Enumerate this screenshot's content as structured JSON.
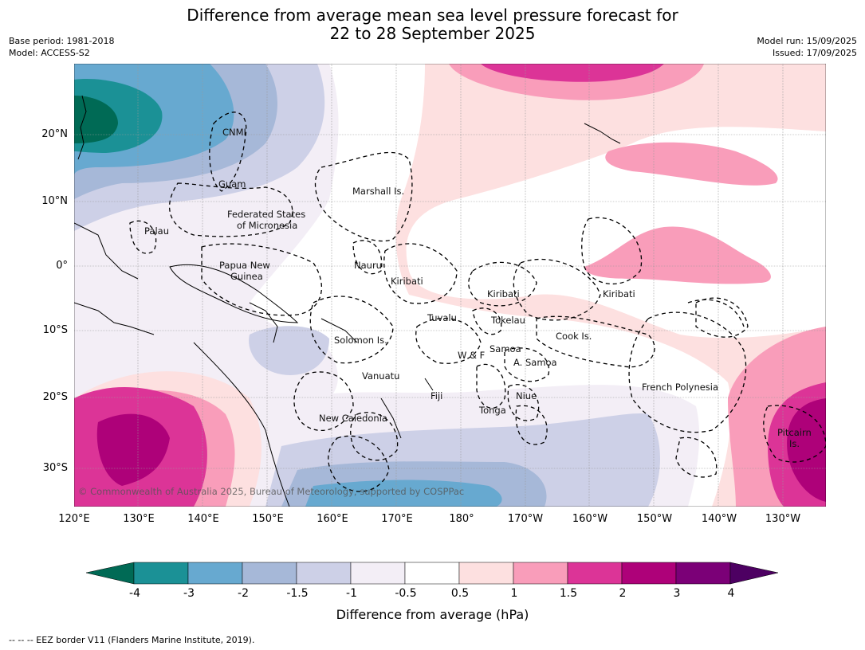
{
  "title": {
    "line1": "Difference from average mean sea level pressure forecast for",
    "line2": "22 to 28 September 2025"
  },
  "meta": {
    "base_period": "Base period: 1981-2018",
    "model": "Model: ACCESS-S2",
    "model_run": "Model run: 15/09/2025",
    "issued": "Issued: 17/09/2025"
  },
  "map": {
    "lon_ticks": [
      "120°E",
      "130°E",
      "140°E",
      "150°E",
      "160°E",
      "170°E",
      "180°",
      "170°W",
      "160°W",
      "150°W",
      "140°W",
      "130°W"
    ],
    "lat_ticks": [
      "20°N",
      "10°N",
      "0°",
      "10°S",
      "20°S",
      "30°S"
    ],
    "copyright": "© Commonwealth of Australia 2025, Bureau of Meteorology, supported by COSPPac",
    "places": [
      {
        "id": "cnmi",
        "label": "CNMI"
      },
      {
        "id": "guam",
        "label": "Guam"
      },
      {
        "id": "marshall",
        "label": "Marshall Is."
      },
      {
        "id": "fsm1",
        "label": "Federated States"
      },
      {
        "id": "fsm2",
        "label": "of Micronesia"
      },
      {
        "id": "palau",
        "label": "Palau"
      },
      {
        "id": "png1",
        "label": "Papua New"
      },
      {
        "id": "png2",
        "label": "Guinea"
      },
      {
        "id": "nauru",
        "label": "Nauru"
      },
      {
        "id": "kiribati1",
        "label": "Kiribati"
      },
      {
        "id": "kiribati2",
        "label": "Kiribati"
      },
      {
        "id": "kiribati3",
        "label": "Kiribati"
      },
      {
        "id": "tuvalu",
        "label": "Tuvalu"
      },
      {
        "id": "tokelau",
        "label": "Tokelau"
      },
      {
        "id": "cook",
        "label": "Cook Is."
      },
      {
        "id": "solomon",
        "label": "Solomon Is."
      },
      {
        "id": "samoa",
        "label": "Samoa"
      },
      {
        "id": "wf",
        "label": "W & F"
      },
      {
        "id": "asamoa",
        "label": "A. Samoa"
      },
      {
        "id": "vanuatu",
        "label": "Vanuatu"
      },
      {
        "id": "fiji",
        "label": "Fiji"
      },
      {
        "id": "niue",
        "label": "Niue"
      },
      {
        "id": "frenchpoly",
        "label": "French Polynesia"
      },
      {
        "id": "tonga",
        "label": "Tonga"
      },
      {
        "id": "newcal",
        "label": "New Caledonia"
      },
      {
        "id": "pitcairn1",
        "label": "Pitcairn"
      },
      {
        "id": "pitcairn2",
        "label": "Is."
      }
    ]
  },
  "colorbar": {
    "title": "Difference from average (hPa)",
    "labels": [
      "-4",
      "-3",
      "-2",
      "-1.5",
      "-1",
      "-0.5",
      "0.5",
      "1",
      "1.5",
      "2",
      "3",
      "4"
    ],
    "colors": {
      "below_-4": "#006a55",
      "bins": [
        "#1b9196",
        "#67a9d0",
        "#a6b8d8",
        "#cdd0e7",
        "#f3eef6",
        "#ffffff",
        "#fde0e0",
        "#f99dba",
        "#dc3497",
        "#ae0179",
        "#7b0077"
      ],
      "above_4": "#4d0062"
    }
  },
  "footnote": "--  --  -- EEZ border V11 (Flanders Marine Institute, 2019)."
}
